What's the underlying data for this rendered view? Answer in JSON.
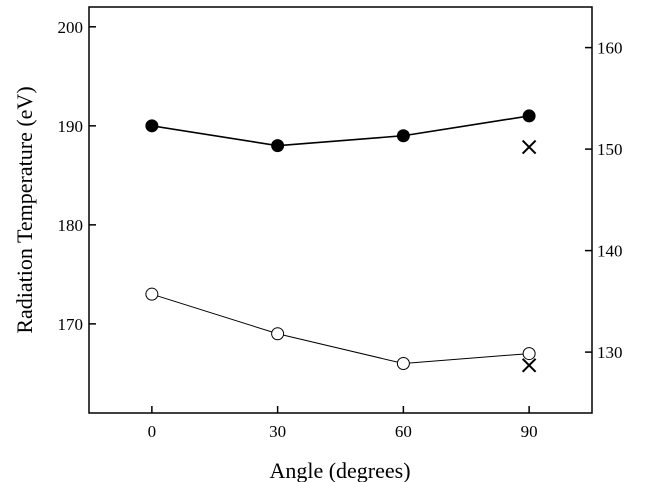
{
  "chart_data": {
    "type": "line",
    "xlabel": "Angle (degrees)",
    "ylabel": "Radiation Temperature (eV)",
    "x_ticks": [
      0,
      30,
      60,
      90
    ],
    "xlim": [
      -15,
      105
    ],
    "ylim": [
      161,
      202
    ],
    "y_ticks": [
      170,
      180,
      190,
      200
    ],
    "y2lim": [
      124,
      164
    ],
    "y2_ticks": [
      130,
      140,
      150,
      160
    ],
    "grid": false,
    "series": [
      {
        "marker": "filled-circle",
        "axis": "left",
        "points": [
          {
            "x": 0,
            "y": 190
          },
          {
            "x": 30,
            "y": 188
          },
          {
            "x": 60,
            "y": 189
          },
          {
            "x": 90,
            "y": 191
          }
        ]
      },
      {
        "marker": "open-circle",
        "axis": "left",
        "points": [
          {
            "x": 0,
            "y": 173
          },
          {
            "x": 30,
            "y": 169
          },
          {
            "x": 60,
            "y": 166
          },
          {
            "x": 90,
            "y": 167
          }
        ]
      },
      {
        "marker": "x",
        "axis": "right",
        "points": [
          {
            "x": 90,
            "y": 150.2
          },
          {
            "x": 90,
            "y": 128.7
          }
        ]
      }
    ]
  }
}
